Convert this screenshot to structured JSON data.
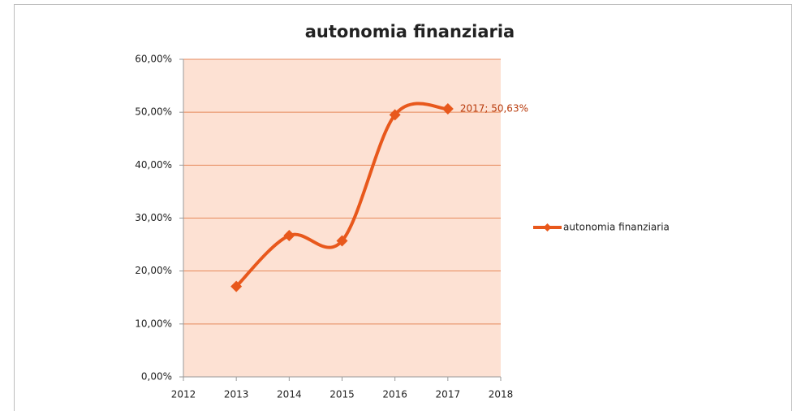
{
  "chart_data": {
    "type": "line",
    "title": "autonomia finanziaria",
    "x": [
      2013,
      2014,
      2015,
      2016,
      2017
    ],
    "series": [
      {
        "name": "autonomia finanziaria",
        "color": "#e8581c",
        "values": [
          17.1,
          26.7,
          25.7,
          49.5,
          50.63
        ],
        "value_labels": [
          null,
          null,
          null,
          null,
          "2017; 50,63%"
        ]
      }
    ],
    "xlim": [
      2012,
      2018
    ],
    "xticks": [
      2012,
      2013,
      2014,
      2015,
      2016,
      2017,
      2018
    ],
    "ylim": [
      0,
      60
    ],
    "yticks": [
      {
        "value": 0,
        "label": "0,00%"
      },
      {
        "value": 10,
        "label": "10,00%"
      },
      {
        "value": 20,
        "label": "20,00%"
      },
      {
        "value": 30,
        "label": "30,00%"
      },
      {
        "value": 40,
        "label": "40,00%"
      },
      {
        "value": 50,
        "label": "50,00%"
      },
      {
        "value": 60,
        "label": "60,00%"
      }
    ],
    "grid": true,
    "smooth": true,
    "legend": "right",
    "plot_background": "#fde1d3"
  }
}
